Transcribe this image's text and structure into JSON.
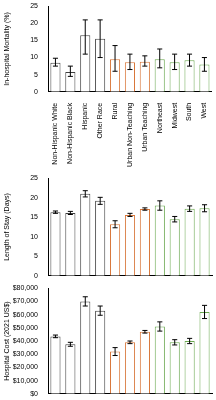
{
  "chart_data": [
    {
      "type": "bar",
      "ylabel": "In-hospital Mortality (%)",
      "categories": [
        "Non-Hispanic White",
        "Non-Hispanic Black",
        "Hispanic",
        "Other Race",
        "Rural",
        "Urban Non-Teaching",
        "Urban Teaching",
        "Northeast",
        "Midwest",
        "South",
        "West"
      ],
      "values": [
        8.5,
        5.8,
        16.5,
        15.5,
        9.5,
        8.6,
        8.8,
        9.5,
        8.6,
        9.2,
        8.0
      ],
      "error_low": [
        7.5,
        4.5,
        11,
        10,
        6,
        6.5,
        7.5,
        7,
        6.5,
        7.5,
        6
      ],
      "error_high": [
        9.8,
        7.5,
        21,
        21,
        13.5,
        11,
        10.5,
        12.5,
        11,
        11,
        10
      ],
      "colors": [
        "#404040",
        "#404040",
        "#404040",
        "#404040",
        "#d9773a",
        "#d9773a",
        "#d9773a",
        "#6aa84f",
        "#6aa84f",
        "#6aa84f",
        "#6aa84f"
      ],
      "ylim": [
        0,
        25
      ],
      "yticks": [
        0,
        5,
        10,
        15,
        20,
        25
      ],
      "grid": false,
      "tick_labels": true
    },
    {
      "type": "bar",
      "ylabel": "Length of Stay (Days)",
      "categories": [
        "Non-Hispanic White",
        "Non-Hispanic Black",
        "Hispanic",
        "Other Race",
        "Rural",
        "Urban Non-Teaching",
        "Urban Teaching",
        "Northeast",
        "Midwest",
        "South",
        "West"
      ],
      "values": [
        16.3,
        16.1,
        21,
        19.2,
        13.2,
        15.6,
        17.1,
        18,
        14.5,
        17.2,
        17.3
      ],
      "error_low": [
        16,
        15.7,
        20.2,
        18.3,
        12.3,
        15.2,
        16.8,
        16.8,
        13.8,
        16.5,
        16.4
      ],
      "error_high": [
        16.6,
        16.5,
        21.8,
        20.1,
        14.1,
        16,
        17.4,
        19.2,
        15.2,
        17.9,
        18.2
      ],
      "colors": [
        "#404040",
        "#404040",
        "#404040",
        "#404040",
        "#d9773a",
        "#d9773a",
        "#d9773a",
        "#6aa84f",
        "#6aa84f",
        "#6aa84f",
        "#6aa84f"
      ],
      "ylim": [
        0,
        25
      ],
      "yticks": [
        0,
        5,
        10,
        15,
        20,
        25
      ],
      "grid": false,
      "tick_labels": "y"
    },
    {
      "type": "bar",
      "ylabel": "Hospital Cost (2021 US$)",
      "categories": [
        "Non-Hispanic White",
        "Non-Hispanic Black",
        "Hispanic",
        "Other Race",
        "Rural",
        "Urban Non-Teaching",
        "Urban Teaching",
        "Northeast",
        "Midwest",
        "South",
        "West"
      ],
      "values": [
        43500,
        37500,
        70000,
        63000,
        32000,
        39000,
        47000,
        51000,
        39000,
        40000,
        62000
      ],
      "error_low": [
        42500,
        36000,
        66500,
        59500,
        29000,
        38000,
        46000,
        47500,
        37000,
        38000,
        57000
      ],
      "error_high": [
        44500,
        39000,
        73500,
        66500,
        35000,
        40000,
        48000,
        54500,
        41000,
        42000,
        67000
      ],
      "colors": [
        "#404040",
        "#404040",
        "#404040",
        "#404040",
        "#d9773a",
        "#d9773a",
        "#d9773a",
        "#6aa84f",
        "#6aa84f",
        "#6aa84f",
        "#6aa84f"
      ],
      "ylim": [
        0,
        80000
      ],
      "yticks": [
        {
          "value": 0,
          "label": "$0"
        },
        {
          "value": 10000,
          "label": "$10,000"
        },
        {
          "value": 20000,
          "label": "$20,000"
        },
        {
          "value": 30000,
          "label": "$30,000"
        },
        {
          "value": 40000,
          "label": "$40,000"
        },
        {
          "value": 50000,
          "label": "$50,000"
        },
        {
          "value": 60000,
          "label": "$60,000"
        },
        {
          "value": 70000,
          "label": "$70,000"
        },
        {
          "value": 80000,
          "label": "$80,000"
        }
      ],
      "grid": false,
      "tick_labels": "y"
    }
  ]
}
